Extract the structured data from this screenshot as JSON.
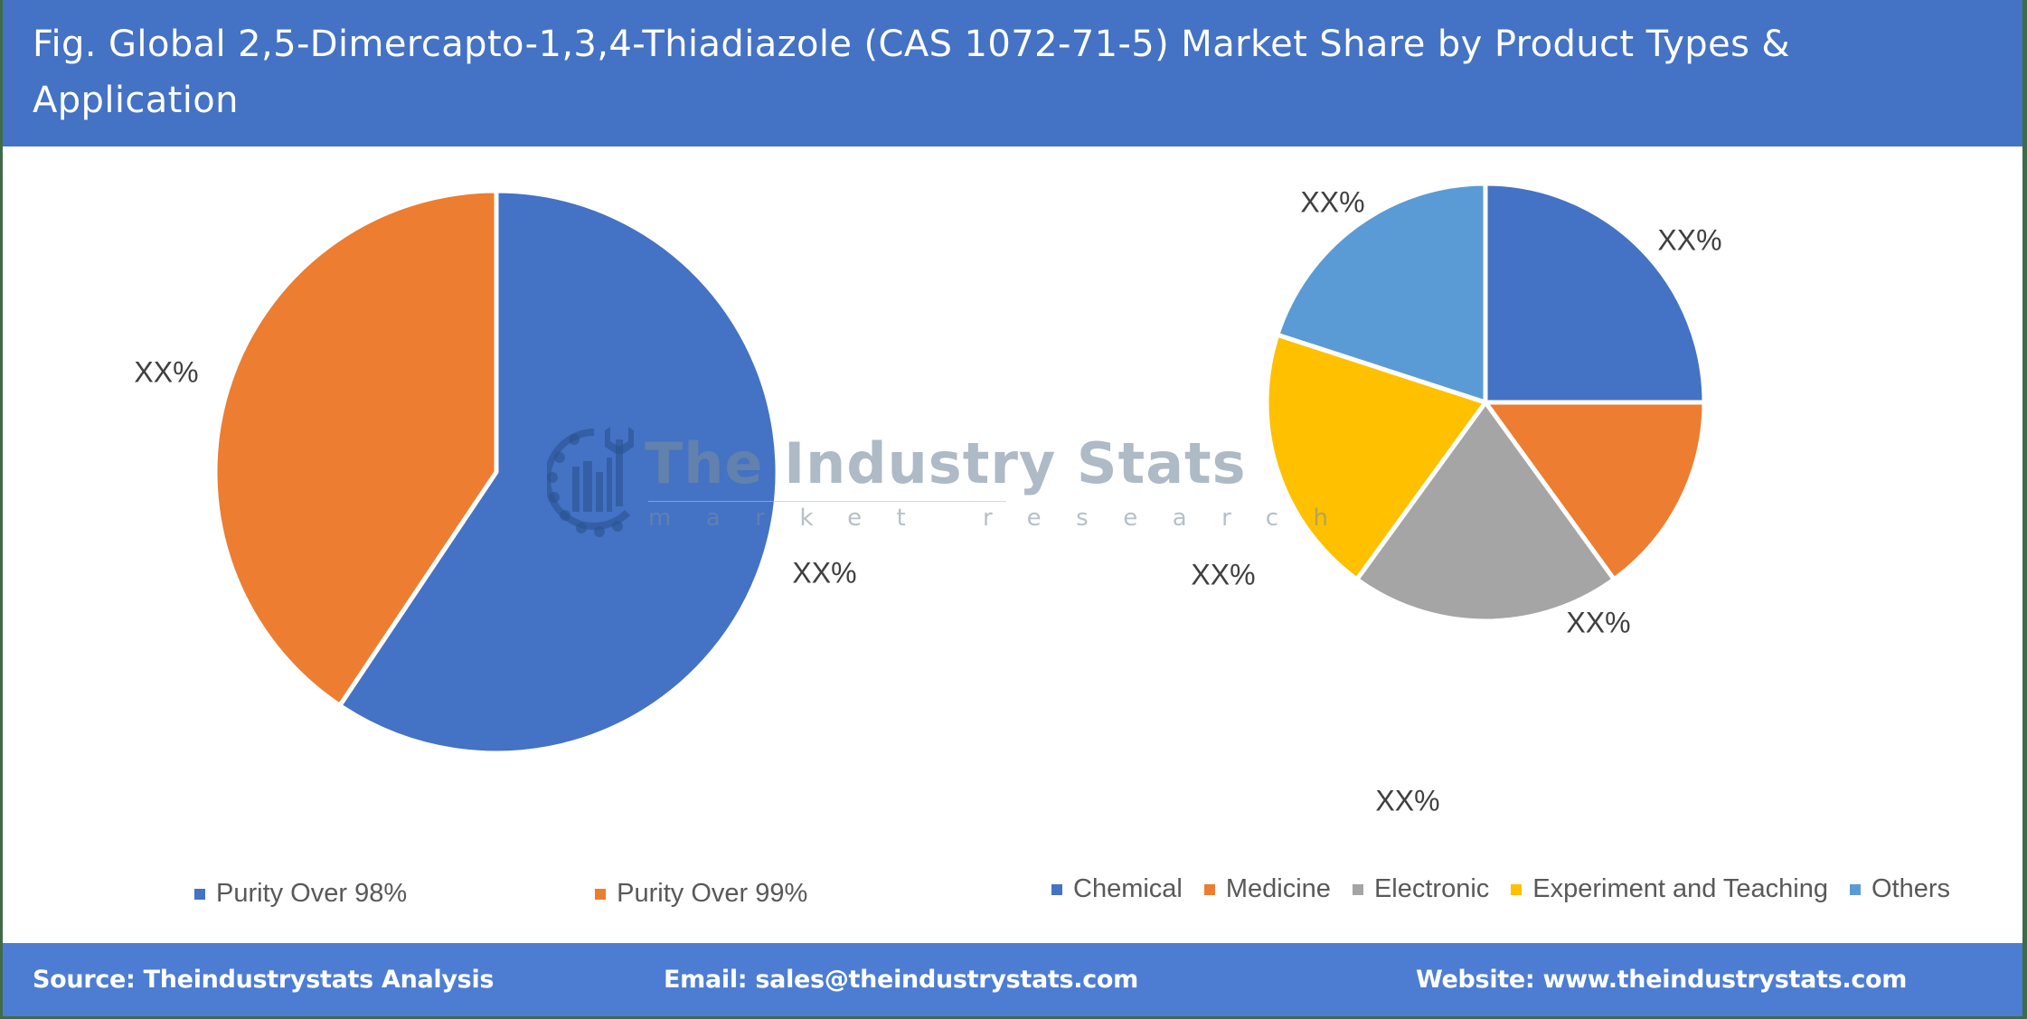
{
  "header": {
    "title": "Fig. Global 2,5-Dimercapto-1,3,4-Thiadiazole (CAS 1072-71-5) Market Share by Product Types & Application"
  },
  "watermark": {
    "brand": "The Industry Stats",
    "tagline": "market research",
    "icon": "gear-factory-wrench-logo-icon"
  },
  "left_chart": {
    "legend": [
      {
        "label": "Purity Over 98%",
        "color": "#4472c4"
      },
      {
        "label": "Purity Over 99%",
        "color": "#ed7d31"
      }
    ],
    "labels": [
      "XX%",
      "XX%"
    ]
  },
  "right_chart": {
    "legend": [
      {
        "label": "Chemical",
        "color": "#4472c4"
      },
      {
        "label": "Medicine",
        "color": "#ed7d31"
      },
      {
        "label": "Electronic",
        "color": "#a5a5a5"
      },
      {
        "label": "Experiment and Teaching",
        "color": "#ffc000"
      },
      {
        "label": "Others",
        "color": "#5b9bd5"
      }
    ],
    "labels": [
      "XX%",
      "XX%",
      "XX%",
      "XX%",
      "XX%"
    ]
  },
  "footer": {
    "source": "Source: Theindustrystats Analysis",
    "email": "Email: sales@theindustrystats.com",
    "website": "Website: www.theindustrystats.com"
  },
  "colors": {
    "header_bg": "#4472c4",
    "footer_bg": "#4d7dd3",
    "border": "#3f6b48",
    "label_text": "#404040",
    "legend_text": "#595959"
  },
  "chart_data": [
    {
      "type": "pie",
      "title": "Market Share by Product Types",
      "categories": [
        "Purity Over 98%",
        "Purity Over 99%"
      ],
      "values": [
        59.4,
        40.6
      ],
      "data_labels": [
        "XX%",
        "XX%"
      ],
      "colors": [
        "#4472c4",
        "#ed7d31"
      ],
      "legend_position": "bottom",
      "note": "values estimated from slice angles; chart labels are masked as XX%"
    },
    {
      "type": "pie",
      "title": "Market Share by Application",
      "categories": [
        "Chemical",
        "Medicine",
        "Electronic",
        "Experiment and Teaching",
        "Others"
      ],
      "values": [
        25,
        15,
        20,
        20,
        20
      ],
      "data_labels": [
        "XX%",
        "XX%",
        "XX%",
        "XX%",
        "XX%"
      ],
      "colors": [
        "#4472c4",
        "#ed7d31",
        "#a5a5a5",
        "#ffc000",
        "#5b9bd5"
      ],
      "legend_position": "bottom",
      "note": "values estimated from slice angles; chart labels are masked as XX%"
    }
  ]
}
